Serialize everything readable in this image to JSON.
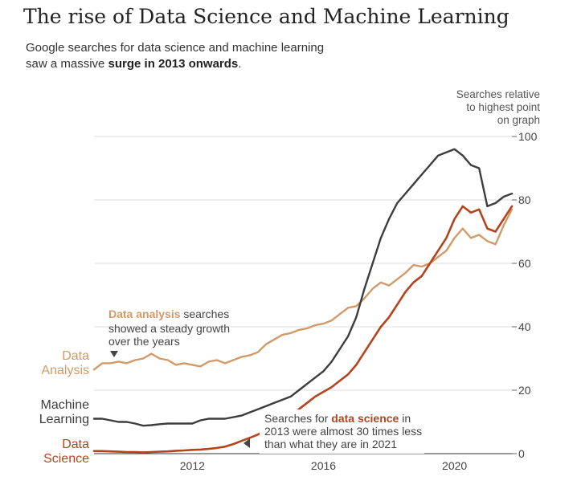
{
  "title": "The rise of Data Science and Machine Learning",
  "subtitle": {
    "line1": "Google searches for data science and machine learning",
    "line2_prefix": "saw a massive ",
    "line2_bold": "surge in 2013 onwards",
    "line2_suffix": "."
  },
  "colors": {
    "machine_learning": "#3d3d3d",
    "data_science": "#b5441c",
    "data_analysis": "#d19a68",
    "grid": "#dddddd",
    "text": "#444444"
  },
  "chart_data": {
    "type": "line",
    "xlim": [
      2009.0,
      2021.75
    ],
    "ylim": [
      0,
      100
    ],
    "grid": true,
    "x_ticks": [
      2012,
      2016,
      2020
    ],
    "y_ticks": [
      0,
      20,
      40,
      60,
      80,
      100
    ],
    "ylabel": [
      "Searches relative",
      "to highest point",
      "on graph"
    ],
    "series": [
      {
        "key": "data_analysis",
        "name": [
          "Data",
          "Analysis"
        ],
        "points": [
          [
            2009.0,
            26.5
          ],
          [
            2009.25,
            28.5
          ],
          [
            2009.5,
            28.5
          ],
          [
            2009.75,
            29
          ],
          [
            2010.0,
            28.5
          ],
          [
            2010.25,
            29.5
          ],
          [
            2010.5,
            30
          ],
          [
            2010.75,
            31.5
          ],
          [
            2011.0,
            30
          ],
          [
            2011.25,
            29.5
          ],
          [
            2011.5,
            28
          ],
          [
            2011.75,
            28.5
          ],
          [
            2012.0,
            28
          ],
          [
            2012.25,
            27.5
          ],
          [
            2012.5,
            29
          ],
          [
            2012.75,
            29.5
          ],
          [
            2013.0,
            28.5
          ],
          [
            2013.25,
            29.5
          ],
          [
            2013.5,
            30.5
          ],
          [
            2013.75,
            31
          ],
          [
            2014.0,
            32
          ],
          [
            2014.25,
            34.5
          ],
          [
            2014.5,
            36
          ],
          [
            2014.75,
            37.5
          ],
          [
            2015.0,
            38
          ],
          [
            2015.25,
            39
          ],
          [
            2015.5,
            39.5
          ],
          [
            2015.75,
            40.5
          ],
          [
            2016.0,
            41
          ],
          [
            2016.25,
            42
          ],
          [
            2016.5,
            44
          ],
          [
            2016.75,
            46
          ],
          [
            2017.0,
            46.5
          ],
          [
            2017.25,
            49
          ],
          [
            2017.5,
            52
          ],
          [
            2017.75,
            54
          ],
          [
            2018.0,
            53
          ],
          [
            2018.25,
            55
          ],
          [
            2018.5,
            57
          ],
          [
            2018.75,
            59.5
          ],
          [
            2019.0,
            59
          ],
          [
            2019.25,
            60
          ],
          [
            2019.5,
            62
          ],
          [
            2019.75,
            64
          ],
          [
            2020.0,
            68
          ],
          [
            2020.25,
            71
          ],
          [
            2020.5,
            68
          ],
          [
            2020.75,
            69
          ],
          [
            2021.0,
            67
          ],
          [
            2021.25,
            66
          ],
          [
            2021.5,
            72
          ],
          [
            2021.75,
            77
          ]
        ]
      },
      {
        "key": "machine_learning",
        "name": [
          "Machine",
          "Learning"
        ],
        "points": [
          [
            2009.0,
            11
          ],
          [
            2009.25,
            11
          ],
          [
            2009.5,
            10.5
          ],
          [
            2009.75,
            10
          ],
          [
            2010.0,
            10
          ],
          [
            2010.25,
            9.5
          ],
          [
            2010.5,
            8.8
          ],
          [
            2010.75,
            9
          ],
          [
            2011.0,
            9.3
          ],
          [
            2011.25,
            9.5
          ],
          [
            2011.5,
            9.5
          ],
          [
            2011.75,
            9.5
          ],
          [
            2012.0,
            9.5
          ],
          [
            2012.25,
            10.5
          ],
          [
            2012.5,
            11
          ],
          [
            2012.75,
            11
          ],
          [
            2013.0,
            11
          ],
          [
            2013.25,
            11.5
          ],
          [
            2013.5,
            12
          ],
          [
            2013.75,
            13
          ],
          [
            2014.0,
            14
          ],
          [
            2014.25,
            15
          ],
          [
            2014.5,
            16
          ],
          [
            2014.75,
            17
          ],
          [
            2015.0,
            18
          ],
          [
            2015.25,
            20
          ],
          [
            2015.5,
            22
          ],
          [
            2015.75,
            24
          ],
          [
            2016.0,
            26
          ],
          [
            2016.25,
            29
          ],
          [
            2016.5,
            33
          ],
          [
            2016.75,
            37
          ],
          [
            2017.0,
            43
          ],
          [
            2017.25,
            52
          ],
          [
            2017.5,
            60
          ],
          [
            2017.75,
            68
          ],
          [
            2018.0,
            74
          ],
          [
            2018.25,
            79
          ],
          [
            2018.5,
            82
          ],
          [
            2018.75,
            85
          ],
          [
            2019.0,
            88
          ],
          [
            2019.25,
            91
          ],
          [
            2019.5,
            94
          ],
          [
            2019.75,
            95
          ],
          [
            2020.0,
            96
          ],
          [
            2020.25,
            94
          ],
          [
            2020.5,
            91
          ],
          [
            2020.75,
            90
          ],
          [
            2021.0,
            78
          ],
          [
            2021.25,
            79
          ],
          [
            2021.5,
            81
          ],
          [
            2021.75,
            82
          ]
        ]
      },
      {
        "key": "data_science",
        "name": [
          "Data",
          "Science"
        ],
        "points": [
          [
            2009.0,
            0.8
          ],
          [
            2009.25,
            0.8
          ],
          [
            2009.5,
            0.7
          ],
          [
            2009.75,
            0.6
          ],
          [
            2010.0,
            0.5
          ],
          [
            2010.25,
            0.5
          ],
          [
            2010.5,
            0.4
          ],
          [
            2010.75,
            0.5
          ],
          [
            2011.0,
            0.6
          ],
          [
            2011.25,
            0.7
          ],
          [
            2011.5,
            0.9
          ],
          [
            2011.75,
            1
          ],
          [
            2012.0,
            1.2
          ],
          [
            2012.25,
            1.3
          ],
          [
            2012.5,
            1.5
          ],
          [
            2012.75,
            1.8
          ],
          [
            2013.0,
            2.2
          ],
          [
            2013.25,
            3
          ],
          [
            2013.5,
            4
          ],
          [
            2013.75,
            5
          ],
          [
            2014.0,
            6
          ],
          [
            2014.25,
            7.5
          ],
          [
            2014.5,
            9
          ],
          [
            2014.75,
            10.5
          ],
          [
            2015.0,
            12
          ],
          [
            2015.25,
            14
          ],
          [
            2015.5,
            16
          ],
          [
            2015.75,
            18
          ],
          [
            2016.0,
            19.5
          ],
          [
            2016.25,
            21
          ],
          [
            2016.5,
            23
          ],
          [
            2016.75,
            25
          ],
          [
            2017.0,
            28
          ],
          [
            2017.25,
            32
          ],
          [
            2017.5,
            36
          ],
          [
            2017.75,
            40
          ],
          [
            2018.0,
            43
          ],
          [
            2018.25,
            47
          ],
          [
            2018.5,
            51
          ],
          [
            2018.75,
            54
          ],
          [
            2019.0,
            56
          ],
          [
            2019.25,
            60
          ],
          [
            2019.5,
            64
          ],
          [
            2019.75,
            68
          ],
          [
            2020.0,
            74
          ],
          [
            2020.25,
            78
          ],
          [
            2020.5,
            76
          ],
          [
            2020.75,
            77
          ],
          [
            2021.0,
            71
          ],
          [
            2021.25,
            70
          ],
          [
            2021.5,
            74
          ],
          [
            2021.75,
            78
          ]
        ]
      }
    ],
    "annotations": [
      {
        "key": "data_analysis_note",
        "bold": "Data analysis",
        "text_suffix": " searches",
        "lines": [
          "showed a steady growth",
          "over the years"
        ]
      },
      {
        "key": "data_science_note",
        "prefix": "Searches for ",
        "bold": "data science",
        "suffix": " in",
        "lines": [
          "2013 were almost 30 times less",
          "than what they are in 2021"
        ]
      }
    ]
  }
}
